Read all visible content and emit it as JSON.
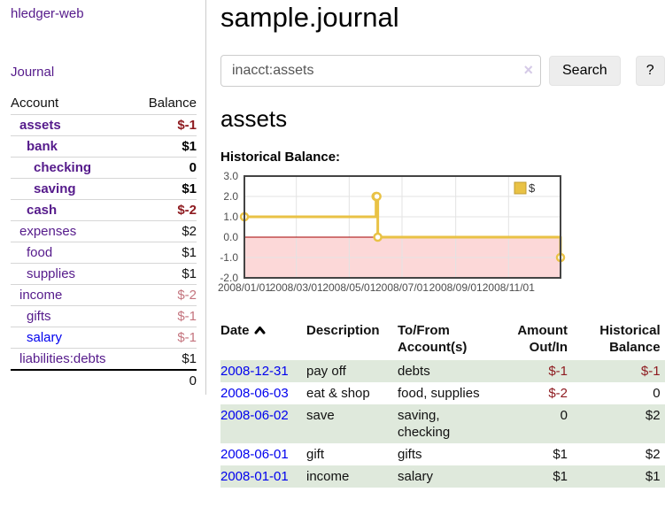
{
  "app_title": "hledger-web",
  "sidebar": {
    "journal_link": "Journal",
    "accounts": {
      "header": {
        "account": "Account",
        "balance": "Balance"
      },
      "rows": [
        {
          "name": "assets",
          "indent": 1,
          "bold": true,
          "balance": "$-1",
          "bal_class": "bal-neg-strong",
          "link_style": "visited"
        },
        {
          "name": "bank",
          "indent": 2,
          "bold": true,
          "balance": "$1",
          "bal_class": "bal-strong",
          "link_style": "visited"
        },
        {
          "name": "checking",
          "indent": 3,
          "bold": true,
          "balance": "0",
          "bal_class": "bal-strong",
          "link_style": "visited"
        },
        {
          "name": "saving",
          "indent": 3,
          "bold": true,
          "balance": "$1",
          "bal_class": "bal-strong",
          "link_style": "visited"
        },
        {
          "name": "cash",
          "indent": 2,
          "bold": true,
          "balance": "$-2",
          "bal_class": "bal-neg-strong",
          "link_style": "visited"
        },
        {
          "name": "expenses",
          "indent": 1,
          "bold": false,
          "balance": "$2",
          "bal_class": "bal-plain",
          "link_style": "visited"
        },
        {
          "name": "food",
          "indent": 2,
          "bold": false,
          "balance": "$1",
          "bal_class": "bal-plain",
          "link_style": "visited"
        },
        {
          "name": "supplies",
          "indent": 2,
          "bold": false,
          "balance": "$1",
          "bal_class": "bal-plain",
          "link_style": "visited"
        },
        {
          "name": "income",
          "indent": 1,
          "bold": false,
          "balance": "$-2",
          "bal_class": "bal-neg-dim",
          "link_style": "visited"
        },
        {
          "name": "gifts",
          "indent": 2,
          "bold": false,
          "balance": "$-1",
          "bal_class": "bal-neg-dim",
          "link_style": "visited"
        },
        {
          "name": "salary",
          "indent": 2,
          "bold": false,
          "balance": "$-1",
          "bal_class": "bal-neg-dim",
          "link_style": "unvisited"
        },
        {
          "name": "liabilities:debts",
          "indent": 1,
          "bold": false,
          "balance": "$1",
          "bal_class": "bal-plain",
          "link_style": "visited"
        }
      ],
      "total": "0"
    }
  },
  "main": {
    "page_title": "sample.journal",
    "search": {
      "value": "inacct:assets",
      "clear_icon": "×",
      "search_button": "Search",
      "help_button": "?"
    },
    "account_heading": "assets",
    "chart_title": "Historical Balance:",
    "register": {
      "headers": {
        "date": "Date",
        "description": "Description",
        "accounts": "To/From Account(s)",
        "amount": "Amount Out/In",
        "balance": "Historical Balance"
      },
      "rows": [
        {
          "date": "2008-12-31",
          "description": "pay off",
          "accounts": "debts",
          "amount": "$-1",
          "amount_negative": true,
          "balance": "$-1",
          "balance_negative": true,
          "highlighted": true
        },
        {
          "date": "2008-06-03",
          "description": "eat & shop",
          "accounts": "food, supplies",
          "amount": "$-2",
          "amount_negative": true,
          "balance": "0",
          "balance_negative": false,
          "highlighted": false
        },
        {
          "date": "2008-06-02",
          "description": "save",
          "accounts": "saving,\nchecking",
          "amount": "0",
          "amount_negative": false,
          "balance": "$2",
          "balance_negative": false,
          "highlighted": true
        },
        {
          "date": "2008-06-01",
          "description": "gift",
          "accounts": "gifts",
          "amount": "$1",
          "amount_negative": false,
          "balance": "$2",
          "balance_negative": false,
          "highlighted": false
        },
        {
          "date": "2008-01-01",
          "description": "income",
          "accounts": "salary",
          "amount": "$1",
          "amount_negative": false,
          "balance": "$1",
          "balance_negative": false,
          "highlighted": true
        }
      ]
    }
  },
  "chart_data": {
    "type": "line",
    "step": true,
    "title": "Historical Balance",
    "series": [
      {
        "name": "$",
        "color": "#e9c245",
        "points": [
          [
            "2008-01-01",
            1
          ],
          [
            "2008-06-01",
            2
          ],
          [
            "2008-06-02",
            2
          ],
          [
            "2008-06-03",
            0
          ],
          [
            "2008-12-31",
            -1
          ]
        ]
      }
    ],
    "x_range": [
      "2008-01-01",
      "2008-12-31"
    ],
    "ylim": [
      -2.0,
      3.0
    ],
    "y_ticks": [
      "3.0",
      "2.0",
      "1.0",
      "0.0",
      "-1.0",
      "-2.0"
    ],
    "x_ticks": [
      "2008/01/01",
      "2008/03/01",
      "2008/05/01",
      "2008/07/01",
      "2008/09/01",
      "2008/11/01"
    ],
    "legend": {
      "label": "$",
      "position": "top-right"
    },
    "grid": true,
    "negative_region_color": "#fcd8d8",
    "zero_line_color": "#a40000",
    "grid_color": "#e3e3e3",
    "border_color": "#444444",
    "tick_color": "#4d4d4d"
  },
  "colors": {
    "link_visited": "#551a8b",
    "link_unvisited": "#0000ee",
    "negative_strong": "#8e1b20",
    "negative_dim": "#c4747e",
    "row_highlight": "#dfe9dc"
  }
}
